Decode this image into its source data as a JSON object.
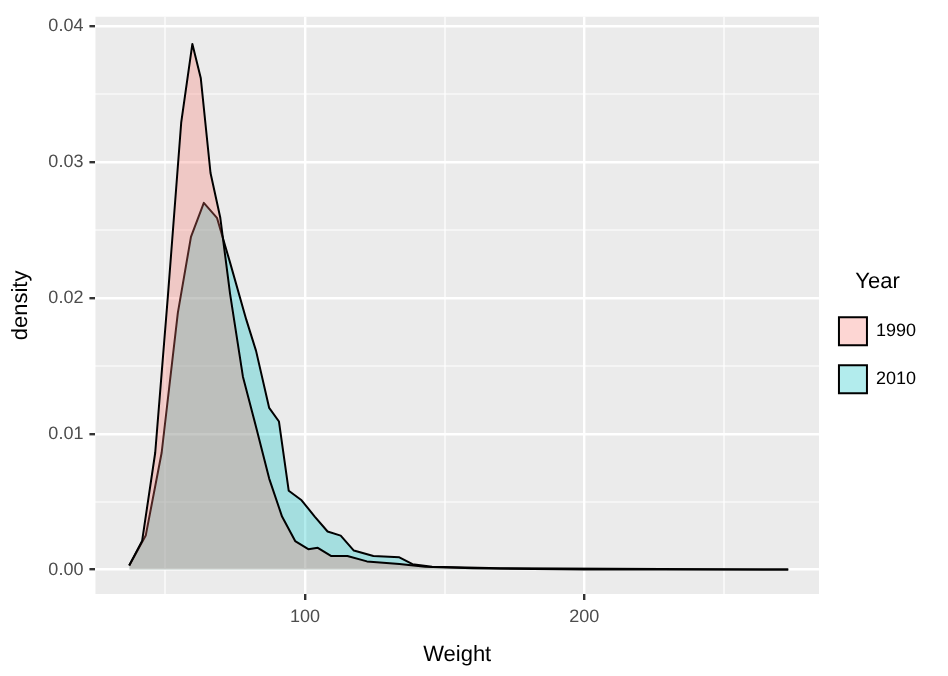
{
  "chart_data": {
    "type": "area",
    "xlabel": "Weight",
    "ylabel": "density",
    "legend_title": "Year",
    "legend": "right",
    "grid": true,
    "marker": "none",
    "xlim": [
      25,
      284
    ],
    "ylim": [
      -0.0018,
      0.0407
    ],
    "xticks": [
      {
        "value": 50,
        "label": null
      },
      100,
      {
        "value": 150,
        "label": null
      },
      200,
      {
        "value": 250,
        "label": null
      }
    ],
    "yticks": [
      {
        "value": 0,
        "label": "0.00"
      },
      {
        "value": 0.005,
        "label": null
      },
      {
        "value": 0.01,
        "label": "0.01"
      },
      {
        "value": 0.015,
        "label": null
      },
      {
        "value": 0.02,
        "label": "0.02"
      },
      {
        "value": 0.025,
        "label": null
      },
      {
        "value": 0.03,
        "label": "0.03"
      },
      {
        "value": 0.035,
        "label": null
      },
      {
        "value": 0.04,
        "label": "0.04"
      }
    ],
    "series": [
      {
        "name": "1990",
        "color": "#f8766d",
        "x": [
          37.1,
          41.7,
          46.4,
          51,
          55.7,
          59.7,
          62.7,
          66.2,
          69.7,
          73.2,
          77.8,
          82.5,
          87.2,
          91.8,
          96.5,
          101.2,
          104.6,
          109.3,
          115.2,
          122.2,
          133.8,
          143.1,
          160,
          200,
          273
        ],
        "values": [
          0.0003,
          0.0021,
          0.0086,
          0.0203,
          0.0329,
          0.0387,
          0.0362,
          0.0292,
          0.0259,
          0.0203,
          0.0142,
          0.0105,
          0.0067,
          0.0039,
          0.0021,
          0.0015,
          0.0016,
          0.001,
          0.001,
          0.0006,
          0.0004,
          0.0002,
          0.0001,
          0,
          0
        ]
      },
      {
        "name": "2010",
        "color": "#00bfc4",
        "x": [
          37.1,
          43,
          48.7,
          54.5,
          59.2,
          63.8,
          68.5,
          73.2,
          79,
          82.5,
          87.2,
          90.7,
          94.2,
          98.8,
          103.5,
          108.1,
          112.8,
          117.5,
          124.5,
          133.8,
          138.5,
          145.5,
          170,
          273
        ],
        "values": [
          0.0003,
          0.0025,
          0.0086,
          0.0189,
          0.0245,
          0.027,
          0.0259,
          0.0226,
          0.0184,
          0.0161,
          0.0119,
          0.0109,
          0.0058,
          0.0051,
          0.0039,
          0.0028,
          0.0025,
          0.0014,
          0.001,
          0.0009,
          0.0004,
          0.0002,
          0.0001,
          0
        ]
      }
    ]
  }
}
